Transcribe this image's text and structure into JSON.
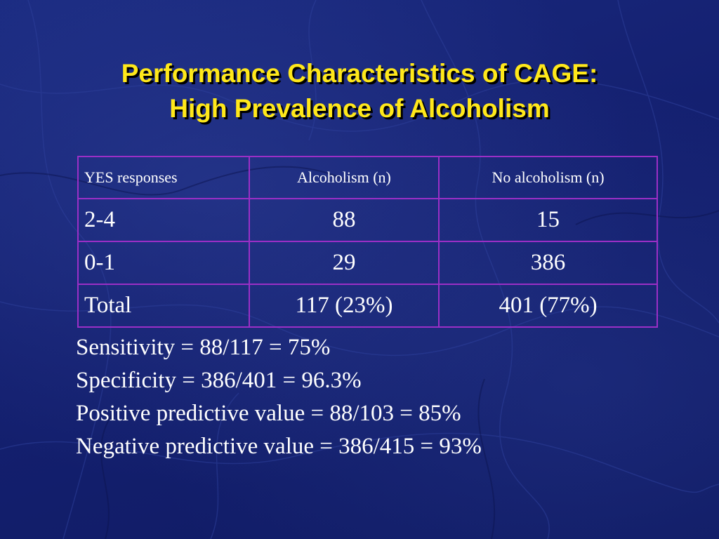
{
  "slide": {
    "title_line1": "Performance Characteristics of CAGE:",
    "title_line2": "High Prevalence of Alcoholism"
  },
  "table": {
    "headers": [
      "YES responses",
      "Alcoholism (n)",
      "No alcoholism (n)"
    ],
    "rows": [
      [
        "2-4",
        "88",
        "15"
      ],
      [
        "0-1",
        "29",
        "386"
      ],
      [
        "Total",
        "117  (23%)",
        "401  (77%)"
      ]
    ]
  },
  "stats": [
    "Sensitivity = 88/117 =  75%",
    "Specificity = 386/401 = 96.3%",
    "Positive predictive value =  88/103 = 85%",
    "Negative predictive value =  386/415 = 93%"
  ],
  "colors": {
    "background": "#14206e",
    "title": "#ffe81a",
    "table_border": "#9b2fc6",
    "text": "#ffffff"
  }
}
